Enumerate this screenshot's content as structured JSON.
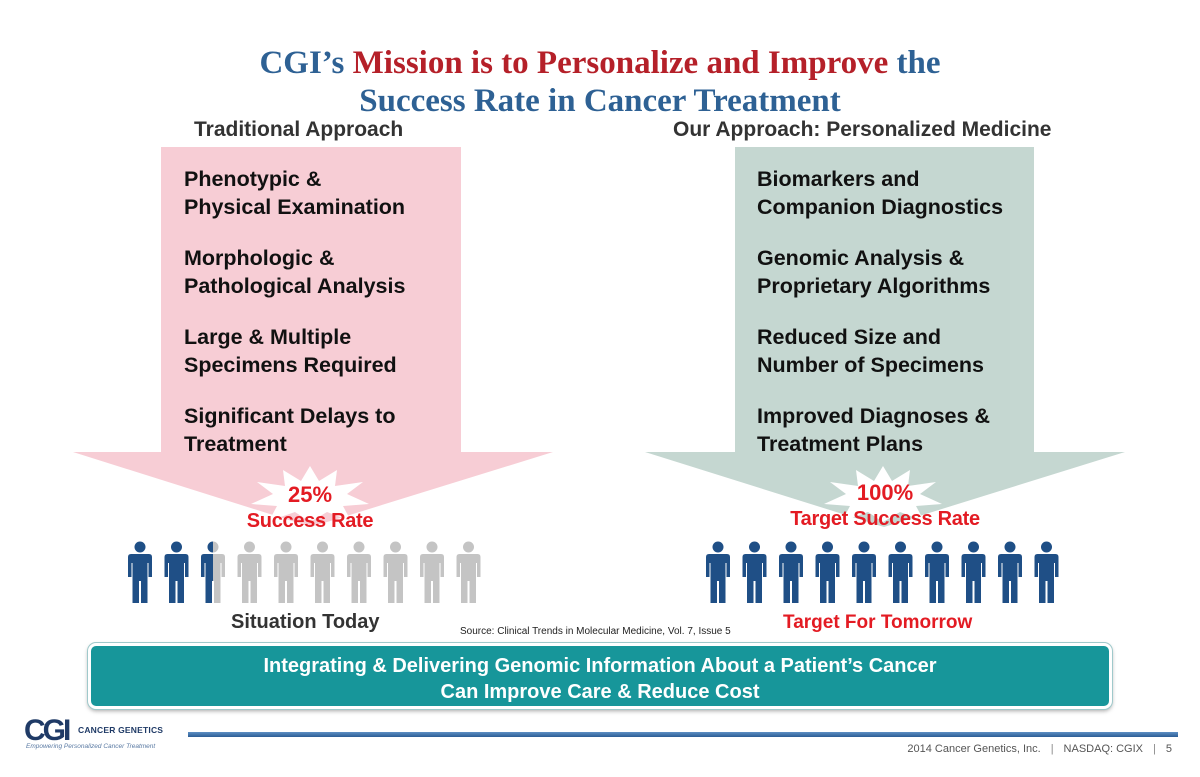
{
  "title": {
    "part1": "CGI’s ",
    "part2": "Mission is to Personalize and Improve",
    "part3": " the",
    "line2": "Success Rate in Cancer Treatment"
  },
  "left": {
    "heading": "Traditional Approach",
    "items": [
      "Phenotypic &\nPhysical Examination",
      "Morphologic &\nPathological Analysis",
      "Large & Multiple\nSpecimens Required",
      "Significant Delays to\nTreatment"
    ],
    "rate_value": "25%",
    "rate_label": "Success Rate",
    "people_total": 10,
    "people_highlighted": 2.5,
    "caption": "Situation Today",
    "arrow_color": "#f7cdd5",
    "highlight_color": "#1f4f86",
    "dim_color": "#c4c4c4"
  },
  "right": {
    "heading": "Our Approach: Personalized Medicine",
    "items": [
      "Biomarkers and\nCompanion Diagnostics",
      "Genomic Analysis &\nProprietary Algorithms",
      "Reduced Size and\nNumber of Specimens",
      "Improved Diagnoses &\nTreatment Plans"
    ],
    "rate_value": "100%",
    "rate_label": "Target Success Rate",
    "people_total": 10,
    "people_highlighted": 10,
    "caption": "Target For Tomorrow",
    "arrow_color": "#c5d7d1",
    "highlight_color": "#1f4f86"
  },
  "source": "Source: Clinical Trends in Molecular Medicine, Vol. 7, Issue 5",
  "banner": {
    "line1": "Integrating & Delivering Genomic Information About a Patient’s Cancer",
    "line2": "Can Improve Care & Reduce Cost"
  },
  "logo": {
    "mark": "CGI",
    "name": "CANCER GENETICS",
    "tagline": "Empowering Personalized Cancer Treatment"
  },
  "footer": {
    "company": "2014 Cancer Genetics, Inc.",
    "ticker": "NASDAQ: CGIX",
    "page": "5"
  },
  "colors": {
    "title_blue": "#2e6194",
    "title_red": "#b52029",
    "rate_red": "#e31b23",
    "banner_teal": "#17969a"
  }
}
